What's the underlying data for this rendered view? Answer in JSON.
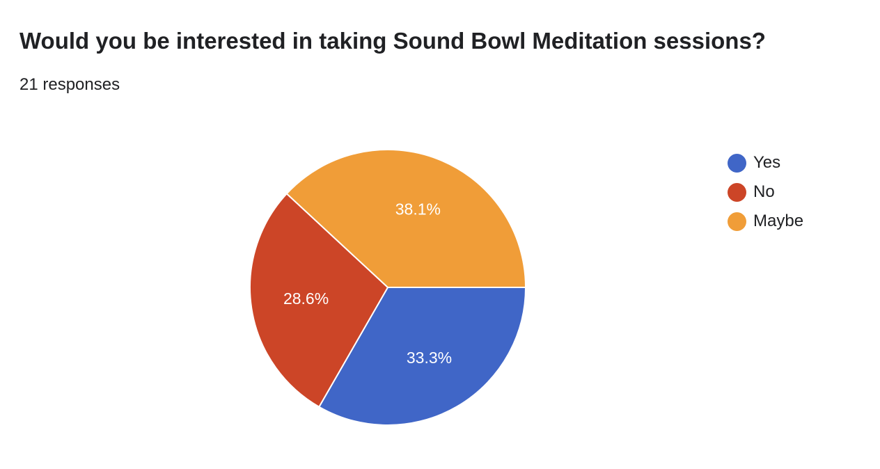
{
  "header": {
    "title": "Would you be interested in taking Sound Bowl Meditation sessions?",
    "responses": "21 responses"
  },
  "chart_data": {
    "type": "pie",
    "legend_position": "right",
    "slices": [
      {
        "name": "Yes",
        "value": 33.3,
        "label": "33.3%",
        "color": "#4066c7"
      },
      {
        "name": "No",
        "value": 28.6,
        "label": "28.6%",
        "color": "#cc4527"
      },
      {
        "name": "Maybe",
        "value": 38.1,
        "label": "38.1%",
        "color": "#f09d38"
      }
    ]
  }
}
